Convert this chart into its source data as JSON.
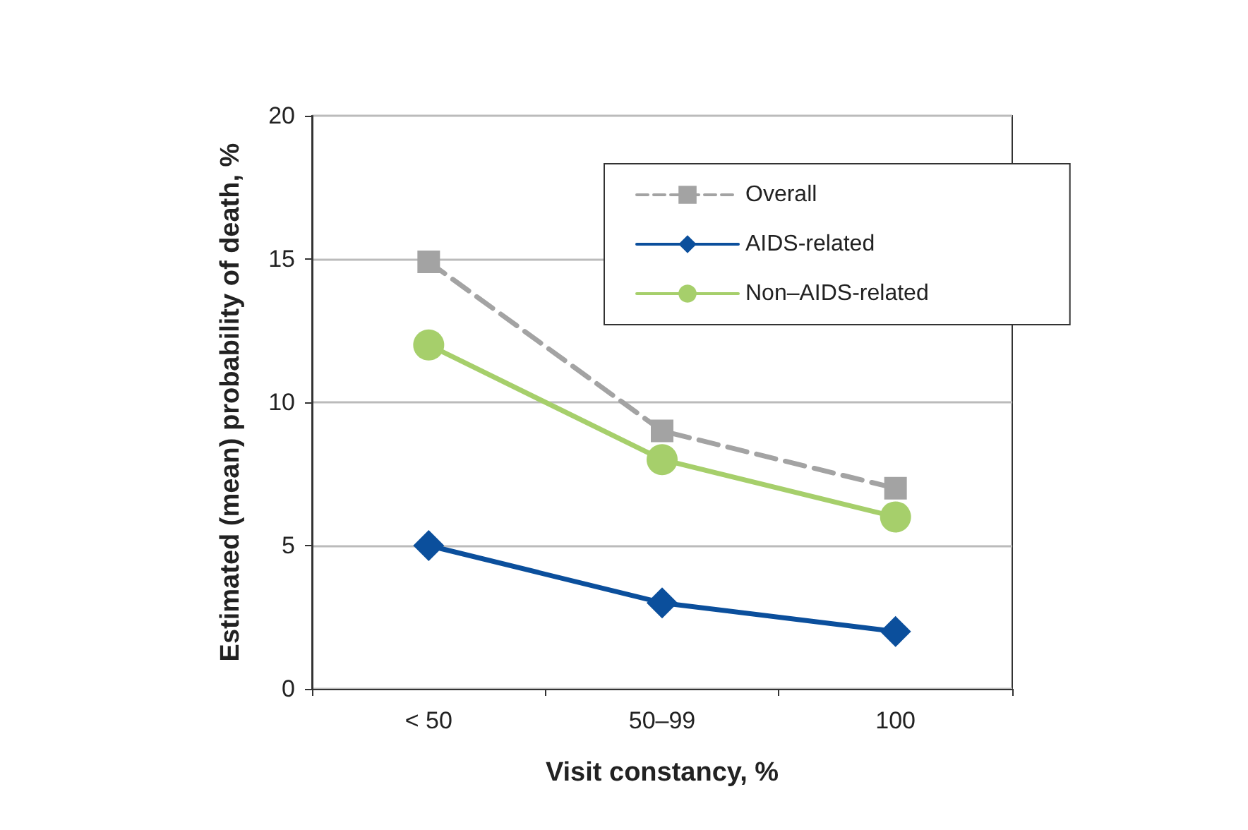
{
  "chart_data": {
    "type": "line",
    "xlabel": "Visit constancy, %",
    "ylabel": "Estimated (mean) probability of death, %",
    "categories": [
      "< 50",
      "50–99",
      "100"
    ],
    "series": [
      {
        "name": "Overall",
        "color": "#a3a3a3",
        "values": [
          14.9,
          9.0,
          7.0
        ],
        "marker": "square",
        "line_style": "dashed"
      },
      {
        "name": "AIDS-related",
        "color": "#0b4f9c",
        "values": [
          5.0,
          3.0,
          2.0
        ],
        "marker": "diamond",
        "line_style": "solid"
      },
      {
        "name": "Non–AIDS-related",
        "color": "#a6cf6b",
        "values": [
          12.0,
          8.0,
          6.0
        ],
        "marker": "circle",
        "line_style": "solid"
      }
    ],
    "ylim": [
      0,
      20
    ],
    "yticks": [
      0,
      5,
      10,
      15,
      20
    ],
    "grid": "y",
    "legend": "top right"
  }
}
